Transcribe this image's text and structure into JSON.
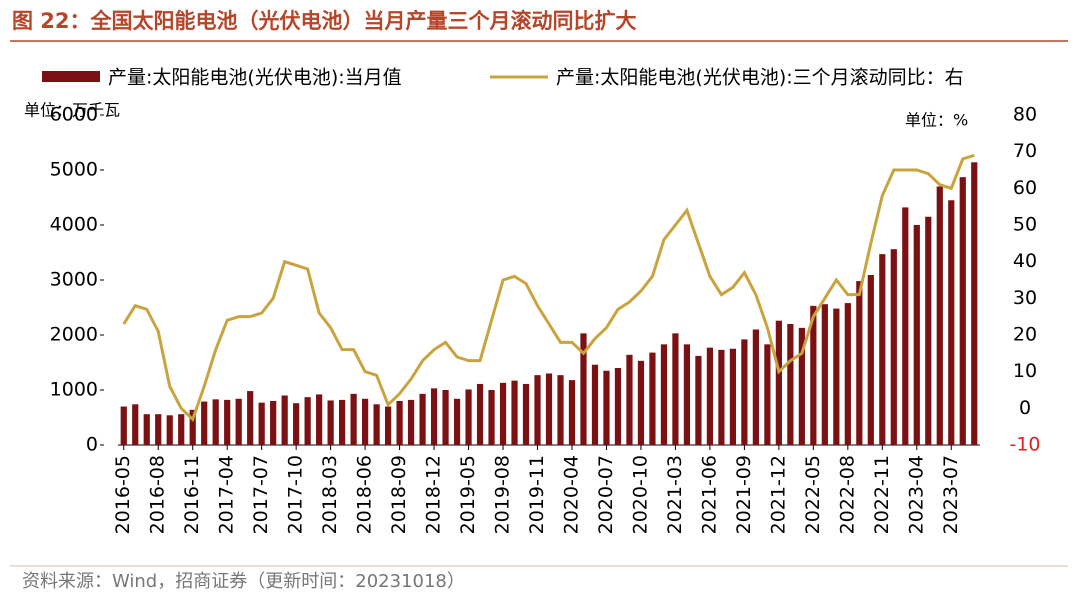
{
  "chart_data": {
    "type": "bar_line",
    "title": "图 22：全国太阳能电池（光伏电池）当月产量三个月滚动同比扩大",
    "source": "资料来源：Wind，招商证券（更新时间：20231018）",
    "ylabel": "单位：万千瓦",
    "y2label": "单位：%",
    "categories": [
      "2016-05",
      null,
      null,
      "2016-08",
      null,
      null,
      "2016-11",
      null,
      null,
      "2017-04",
      null,
      null,
      "2017-07",
      null,
      null,
      "2017-10",
      null,
      null,
      "2018-03",
      null,
      null,
      "2018-06",
      null,
      null,
      "2018-09",
      null,
      null,
      "2018-12",
      null,
      null,
      "2019-05",
      null,
      null,
      "2019-08",
      null,
      null,
      "2019-11",
      null,
      null,
      "2020-04",
      null,
      null,
      "2020-07",
      null,
      null,
      "2020-10",
      null,
      null,
      "2021-03",
      null,
      null,
      "2021-06",
      null,
      null,
      "2021-09",
      null,
      null,
      "2021-12",
      null,
      null,
      "2022-05",
      null,
      null,
      "2022-08",
      null,
      null,
      "2022-11",
      null,
      null,
      "2023-04",
      null,
      null,
      "2023-07",
      null,
      null
    ],
    "series": [
      {
        "name": "产量:太阳能电池(光伏电池):当月值",
        "color": "#7b1113",
        "kind": "bar",
        "values": [
          700,
          740,
          560,
          560,
          540,
          560,
          640,
          790,
          830,
          820,
          840,
          980,
          770,
          800,
          900,
          760,
          870,
          920,
          810,
          820,
          930,
          840,
          740,
          700,
          800,
          820,
          930,
          1030,
          1000,
          840,
          1010,
          1110,
          1000,
          1130,
          1170,
          1110,
          1270,
          1300,
          1270,
          1180,
          2030,
          1460,
          1350,
          1400,
          1640,
          1530,
          1680,
          1830,
          2030,
          1830,
          1620,
          1770,
          1730,
          1750,
          1920,
          2100,
          1830,
          2260,
          2200,
          2130,
          2530,
          2560,
          2480,
          2580,
          2980,
          3090,
          3470,
          3560,
          4320,
          4000,
          4150,
          4700,
          4450,
          4870,
          5140
        ]
      },
      {
        "name": "产量:太阳能电池(光伏电池):三个月滚动同比：右",
        "color": "#c9a33e",
        "kind": "line",
        "axis": "y2",
        "values": [
          23,
          28,
          27,
          21,
          6,
          0,
          -3,
          6,
          16,
          24,
          25,
          25,
          26,
          30,
          40,
          39,
          38,
          26,
          22,
          16,
          16,
          10,
          9,
          1,
          4,
          8,
          13,
          16,
          18,
          14,
          13,
          13,
          24,
          35,
          36,
          34,
          28,
          23,
          18,
          18,
          15,
          19,
          22,
          27,
          29,
          32,
          36,
          46,
          50,
          54,
          45,
          36,
          31,
          33,
          37,
          31,
          22,
          10,
          13,
          15,
          25,
          30,
          35,
          31,
          31,
          45,
          58,
          65,
          65,
          65,
          64,
          61,
          60,
          68,
          69
        ]
      }
    ],
    "ylim": [
      0,
      6000
    ],
    "yticks": [
      0,
      1000,
      2000,
      3000,
      4000,
      5000,
      6000
    ],
    "y2lim": [
      -10,
      80
    ],
    "y2ticks": [
      -10,
      0,
      10,
      20,
      30,
      40,
      50,
      60,
      70,
      80
    ]
  }
}
